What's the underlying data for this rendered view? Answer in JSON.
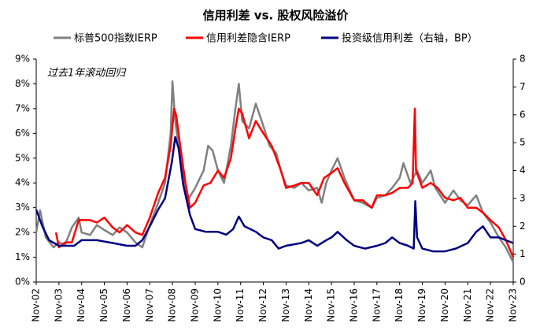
{
  "chart_data": {
    "type": "line",
    "title": "信用利差 vs. 股权风险溢价",
    "annotation": "过去1年滚动回归",
    "xlim": [
      2002.83,
      2023.83
    ],
    "xticks": [
      {
        "value": 2002.83,
        "label": "Nov-02"
      },
      {
        "value": 2003.83,
        "label": "Nov-03"
      },
      {
        "value": 2004.83,
        "label": "Nov-04"
      },
      {
        "value": 2005.83,
        "label": "Nov-05"
      },
      {
        "value": 2006.83,
        "label": "Nov-06"
      },
      {
        "value": 2007.83,
        "label": "Nov-07"
      },
      {
        "value": 2008.83,
        "label": "Nov-08"
      },
      {
        "value": 2009.83,
        "label": "Nov-09"
      },
      {
        "value": 2010.83,
        "label": "Nov-10"
      },
      {
        "value": 2011.83,
        "label": "Nov-11"
      },
      {
        "value": 2012.83,
        "label": "Nov-12"
      },
      {
        "value": 2013.83,
        "label": "Nov-13"
      },
      {
        "value": 2014.83,
        "label": "Nov-14"
      },
      {
        "value": 2015.83,
        "label": "Nov-15"
      },
      {
        "value": 2016.83,
        "label": "Nov-16"
      },
      {
        "value": 2017.83,
        "label": "Nov-17"
      },
      {
        "value": 2018.83,
        "label": "Nov-18"
      },
      {
        "value": 2019.83,
        "label": "Nov-19"
      },
      {
        "value": 2020.83,
        "label": "Nov-20"
      },
      {
        "value": 2021.83,
        "label": "Nov-21"
      },
      {
        "value": 2022.83,
        "label": "Nov-22"
      },
      {
        "value": 2023.83,
        "label": "Nov-23"
      }
    ],
    "ylim": [
      0,
      9
    ],
    "yticks": [
      {
        "value": 0,
        "label": "0%"
      },
      {
        "value": 1,
        "label": "1%"
      },
      {
        "value": 2,
        "label": "2%"
      },
      {
        "value": 3,
        "label": "3%"
      },
      {
        "value": 4,
        "label": "4%"
      },
      {
        "value": 5,
        "label": "5%"
      },
      {
        "value": 6,
        "label": "6%"
      },
      {
        "value": 7,
        "label": "7%"
      },
      {
        "value": 8,
        "label": "8%"
      },
      {
        "value": 9,
        "label": "9%"
      }
    ],
    "y2lim": [
      0,
      8
    ],
    "y2ticks": [
      0,
      1,
      2,
      3,
      4,
      5,
      6,
      7,
      8
    ],
    "series": [
      {
        "name": "标普500指数IERP",
        "color": "#808080",
        "x": [
          2002.83,
          2003.0,
          2003.25,
          2003.6,
          2003.83,
          2004.1,
          2004.4,
          2004.7,
          2004.83,
          2005.2,
          2005.5,
          2005.83,
          2006.2,
          2006.5,
          2006.83,
          2007.2,
          2007.5,
          2007.83,
          2008.2,
          2008.5,
          2008.75,
          2008.83,
          2008.95,
          2009.1,
          2009.3,
          2009.5,
          2009.83,
          2010.2,
          2010.4,
          2010.6,
          2010.83,
          2011.1,
          2011.4,
          2011.6,
          2011.75,
          2011.9,
          2012.2,
          2012.5,
          2012.83,
          2013.1,
          2013.4,
          2013.6,
          2013.83,
          2014.2,
          2014.5,
          2014.83,
          2015.2,
          2015.4,
          2015.6,
          2015.83,
          2016.1,
          2016.4,
          2016.83,
          2017.2,
          2017.6,
          2017.83,
          2018.2,
          2018.5,
          2018.83,
          2019.0,
          2019.3,
          2019.6,
          2019.83,
          2020.2,
          2020.4,
          2020.83,
          2021.2,
          2021.5,
          2021.83,
          2022.2,
          2022.5,
          2022.83,
          2023.2,
          2023.5,
          2023.83
        ],
        "values": [
          2.0,
          2.9,
          1.8,
          1.4,
          1.6,
          1.5,
          2.2,
          2.6,
          2.0,
          1.9,
          2.3,
          2.1,
          1.9,
          2.2,
          2.0,
          1.6,
          1.4,
          2.3,
          3.2,
          4.0,
          6.0,
          8.1,
          6.5,
          5.5,
          4.2,
          3.3,
          3.8,
          4.5,
          5.5,
          5.3,
          4.5,
          4.0,
          5.5,
          7.0,
          8.0,
          6.5,
          6.2,
          7.2,
          6.3,
          5.5,
          5.2,
          4.5,
          3.9,
          3.8,
          4.0,
          3.7,
          3.8,
          3.2,
          4.0,
          4.5,
          5.0,
          4.2,
          3.3,
          3.2,
          3.0,
          3.4,
          3.5,
          3.8,
          4.2,
          4.8,
          4.0,
          4.5,
          4.0,
          4.5,
          3.8,
          3.2,
          3.7,
          3.3,
          3.1,
          3.5,
          2.8,
          2.4,
          1.8,
          1.4,
          0.8
        ]
      },
      {
        "name": "信用利差隐含IERP",
        "color": "#ff0000",
        "x": [
          2003.7,
          2003.83,
          2004.1,
          2004.4,
          2004.7,
          2004.83,
          2005.2,
          2005.5,
          2005.83,
          2006.2,
          2006.5,
          2006.83,
          2007.2,
          2007.5,
          2007.83,
          2008.2,
          2008.5,
          2008.75,
          2008.9,
          2009.0,
          2009.2,
          2009.4,
          2009.6,
          2009.83,
          2010.2,
          2010.5,
          2010.83,
          2011.1,
          2011.4,
          2011.6,
          2011.75,
          2011.9,
          2012.2,
          2012.5,
          2012.83,
          2013.2,
          2013.6,
          2013.83,
          2014.2,
          2014.5,
          2014.83,
          2015.2,
          2015.5,
          2015.83,
          2016.1,
          2016.4,
          2016.83,
          2017.2,
          2017.6,
          2017.83,
          2018.2,
          2018.5,
          2018.83,
          2019.2,
          2019.4,
          2019.5,
          2019.55,
          2019.83,
          2020.2,
          2020.5,
          2020.83,
          2021.2,
          2021.5,
          2021.83,
          2022.2,
          2022.5,
          2022.83,
          2023.2,
          2023.5,
          2023.83
        ],
        "values": [
          2.0,
          1.4,
          1.6,
          1.6,
          2.5,
          2.5,
          2.5,
          2.4,
          2.6,
          2.2,
          2.0,
          2.3,
          2.0,
          1.9,
          2.6,
          3.6,
          4.2,
          5.5,
          7.0,
          6.7,
          5.3,
          4.0,
          3.0,
          3.2,
          3.9,
          4.0,
          4.5,
          4.2,
          5.0,
          6.2,
          7.0,
          6.8,
          5.8,
          6.5,
          6.0,
          5.5,
          4.5,
          3.8,
          3.9,
          4.0,
          4.0,
          3.5,
          4.2,
          4.4,
          4.6,
          4.0,
          3.3,
          3.3,
          3.0,
          3.5,
          3.5,
          3.6,
          3.8,
          3.8,
          4.0,
          7.0,
          4.5,
          3.8,
          4.0,
          3.8,
          3.4,
          3.3,
          3.4,
          3.0,
          3.0,
          2.8,
          2.5,
          2.2,
          1.7,
          1.0
        ]
      },
      {
        "name": "投资级信用利差（右轴，BP）",
        "color": "#000080",
        "axis": "y2",
        "x": [
          2002.83,
          2003.1,
          2003.4,
          2003.83,
          2004.5,
          2004.83,
          2005.5,
          2006.2,
          2006.83,
          2007.2,
          2007.5,
          2007.83,
          2008.2,
          2008.5,
          2008.8,
          2008.95,
          2009.1,
          2009.3,
          2009.6,
          2009.83,
          2010.3,
          2010.83,
          2011.2,
          2011.5,
          2011.75,
          2012.0,
          2012.5,
          2012.83,
          2013.2,
          2013.5,
          2013.83,
          2014.5,
          2014.83,
          2015.2,
          2015.6,
          2015.83,
          2016.1,
          2016.5,
          2016.83,
          2017.3,
          2017.83,
          2018.2,
          2018.5,
          2018.83,
          2019.2,
          2019.45,
          2019.52,
          2019.6,
          2019.83,
          2020.3,
          2020.83,
          2021.3,
          2021.83,
          2022.2,
          2022.5,
          2022.83,
          2023.2,
          2023.5,
          2023.83
        ],
        "values": [
          2.6,
          2.0,
          1.5,
          1.3,
          1.3,
          1.5,
          1.5,
          1.4,
          1.3,
          1.3,
          1.5,
          2.0,
          2.6,
          3.0,
          4.3,
          5.2,
          4.8,
          3.5,
          2.4,
          1.9,
          1.8,
          1.8,
          1.7,
          1.9,
          2.35,
          2.0,
          1.8,
          1.6,
          1.5,
          1.2,
          1.3,
          1.4,
          1.5,
          1.3,
          1.5,
          1.6,
          1.8,
          1.5,
          1.3,
          1.2,
          1.3,
          1.4,
          1.6,
          1.4,
          1.3,
          1.2,
          2.9,
          1.6,
          1.2,
          1.1,
          1.1,
          1.2,
          1.4,
          1.8,
          2.0,
          1.6,
          1.6,
          1.5,
          1.4
        ]
      }
    ]
  }
}
